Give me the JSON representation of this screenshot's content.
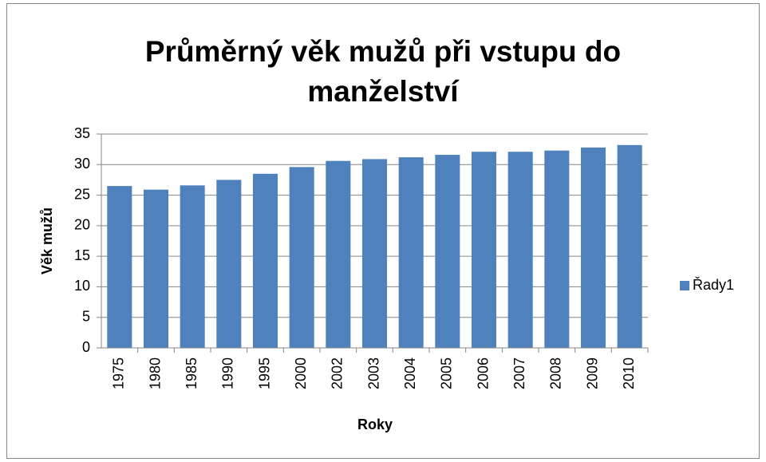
{
  "chart_data": {
    "type": "bar",
    "title": "Průměrný věk mužů při vstupu do manželství",
    "x_label": "Roky",
    "y_label": "Věk mužů",
    "categories": [
      "1975",
      "1980",
      "1985",
      "1990",
      "1995",
      "2000",
      "2002",
      "2003",
      "2004",
      "2005",
      "2006",
      "2007",
      "2008",
      "2009",
      "2010"
    ],
    "series": [
      {
        "name": "Řady1",
        "color": "#4f81bd",
        "values": [
          26.5,
          25.9,
          26.6,
          27.5,
          28.5,
          29.6,
          30.6,
          30.9,
          31.2,
          31.6,
          32.1,
          32.1,
          32.3,
          32.8,
          33.2
        ]
      }
    ],
    "ylim": [
      0,
      35
    ],
    "yticks": [
      0,
      5,
      10,
      15,
      20,
      25,
      30,
      35
    ],
    "grid": true,
    "legend": "right"
  }
}
